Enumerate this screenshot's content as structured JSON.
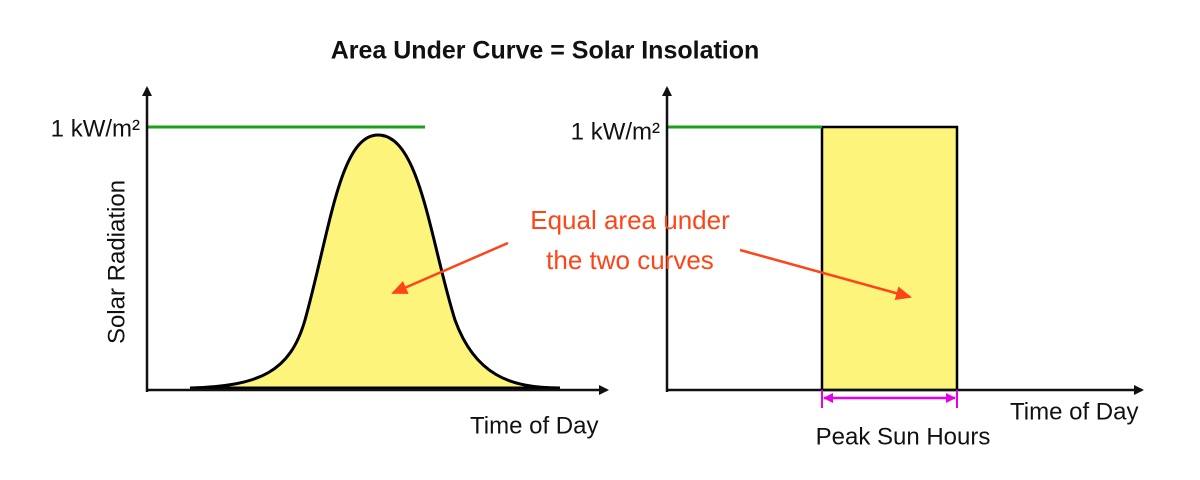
{
  "title": "Area Under Curve = Solar Insolation",
  "left_panel": {
    "level_label": "1 kW/m²",
    "y_axis_label": "Solar Radiation",
    "x_axis_label": "Time of Day"
  },
  "right_panel": {
    "level_label": "1 kW/m²",
    "x_axis_label": "Time of Day",
    "width_label": "Peak Sun Hours"
  },
  "annotation": {
    "lines": [
      "Equal area under",
      "the two curves"
    ]
  }
}
